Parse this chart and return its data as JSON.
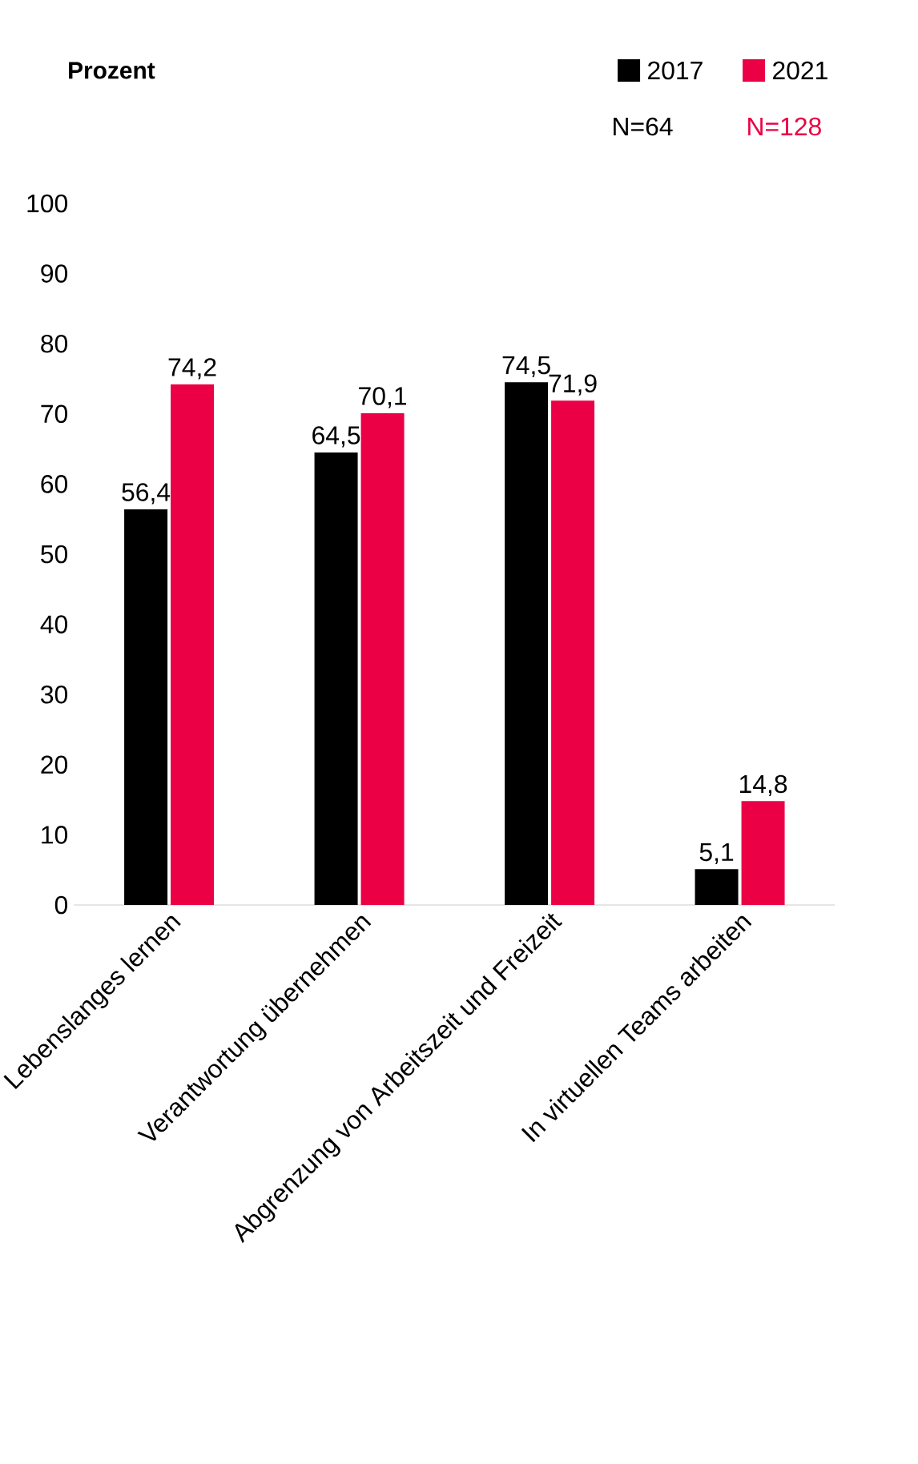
{
  "chart_data": {
    "type": "bar",
    "title": "Prozent",
    "categories": [
      "Lebenslanges lernen",
      "Verantwortung übernehmen",
      "Abgrenzung von Arbeitszeit und Freizeit",
      "In virtuellen Teams arbeiten"
    ],
    "series": [
      {
        "name": "2017",
        "color": "#000000",
        "values": [
          56.4,
          64.5,
          74.5,
          5.1
        ],
        "value_labels": [
          "56,4",
          "64,5",
          "74,5",
          "5,1"
        ]
      },
      {
        "name": "2021",
        "color": "#eb0045",
        "values": [
          74.2,
          70.1,
          71.9,
          14.8
        ],
        "value_labels": [
          "74,2",
          "70,1",
          "71,9",
          "14,8"
        ]
      }
    ],
    "annotations": [
      "N=64",
      "N=128"
    ],
    "ylim": [
      0,
      100
    ],
    "yticks": [
      0,
      10,
      20,
      30,
      40,
      50,
      60,
      70,
      80,
      90,
      100
    ],
    "legend": "top right"
  }
}
